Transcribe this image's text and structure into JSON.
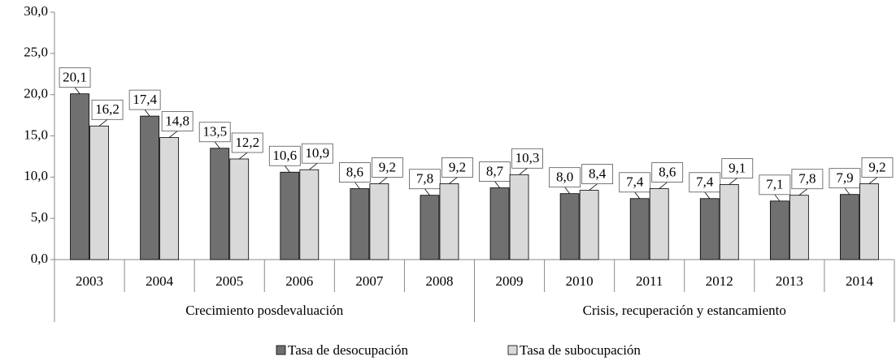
{
  "chart_data": {
    "type": "bar",
    "category_groups": [
      {
        "name": "Crecimiento posdevaluación",
        "categories": [
          "2003",
          "2004",
          "2005",
          "2006",
          "2007",
          "2008"
        ]
      },
      {
        "name": "Crisis, recuperación y estancamiento",
        "categories": [
          "2009",
          "2010",
          "2011",
          "2012",
          "2013",
          "2014"
        ]
      }
    ],
    "series": [
      {
        "name": "Tasa de desocupación",
        "color": "#707070",
        "values": [
          20.1,
          17.4,
          13.5,
          10.6,
          8.6,
          7.8,
          8.7,
          8.0,
          7.4,
          7.4,
          7.1,
          7.9
        ],
        "value_labels": [
          "20,1",
          "17,4",
          "13,5",
          "10,6",
          "8,6",
          "7,8",
          "8,7",
          "8,0",
          "7,4",
          "7,4",
          "7,1",
          "7,9"
        ]
      },
      {
        "name": "Tasa de subocupación",
        "color": "#d9d9d9",
        "values": [
          16.2,
          14.8,
          12.2,
          10.9,
          9.2,
          9.2,
          10.3,
          8.4,
          8.6,
          9.1,
          7.8,
          9.2
        ],
        "value_labels": [
          "16,2",
          "14,8",
          "12,2",
          "10,9",
          "9,2",
          "9,2",
          "10,3",
          "8,4",
          "8,6",
          "9,1",
          "7,8",
          "9,2"
        ]
      }
    ],
    "ylim": [
      0,
      30
    ],
    "yticks": [
      {
        "value": 0,
        "label": "0,0"
      },
      {
        "value": 5,
        "label": "5,0"
      },
      {
        "value": 10,
        "label": "10,0"
      },
      {
        "value": 15,
        "label": "15,0"
      },
      {
        "value": 20,
        "label": "20,0"
      },
      {
        "value": 25,
        "label": "25,0"
      },
      {
        "value": 30,
        "label": "30,0"
      }
    ],
    "grid": false,
    "legend": "bottom"
  }
}
